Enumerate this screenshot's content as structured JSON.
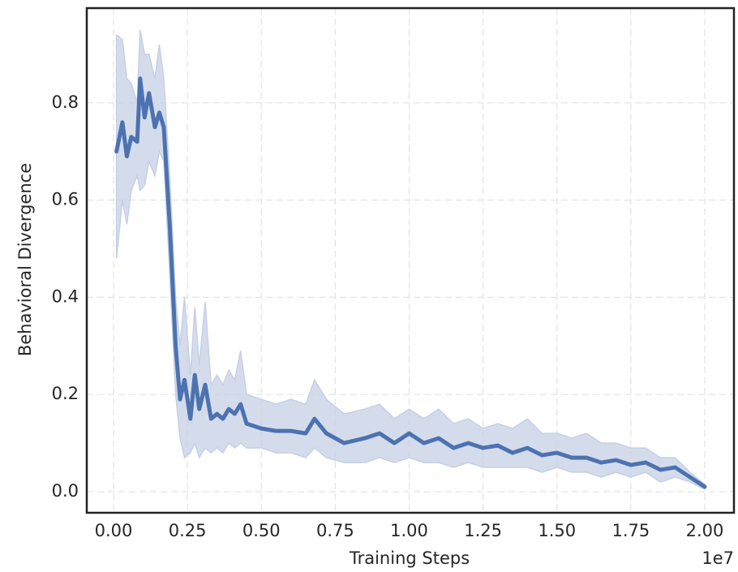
{
  "chart_data": {
    "type": "line",
    "xlabel": "Training Steps",
    "ylabel": "Behavioral Divergence",
    "x_offset_label": "1e7",
    "x": [
      0.01,
      0.03,
      0.045,
      0.06,
      0.08,
      0.09,
      0.105,
      0.12,
      0.14,
      0.155,
      0.17,
      0.19,
      0.21,
      0.225,
      0.24,
      0.26,
      0.275,
      0.29,
      0.31,
      0.33,
      0.35,
      0.37,
      0.39,
      0.41,
      0.43,
      0.45,
      0.5,
      0.55,
      0.6,
      0.65,
      0.68,
      0.72,
      0.78,
      0.85,
      0.9,
      0.95,
      1.0,
      1.05,
      1.1,
      1.15,
      1.2,
      1.25,
      1.3,
      1.35,
      1.4,
      1.45,
      1.5,
      1.55,
      1.6,
      1.65,
      1.7,
      1.75,
      1.8,
      1.85,
      1.9,
      1.95,
      2.0
    ],
    "values": [
      0.7,
      0.76,
      0.69,
      0.73,
      0.72,
      0.85,
      0.77,
      0.82,
      0.75,
      0.78,
      0.75,
      0.55,
      0.3,
      0.19,
      0.23,
      0.15,
      0.24,
      0.17,
      0.22,
      0.15,
      0.16,
      0.15,
      0.17,
      0.16,
      0.18,
      0.14,
      0.13,
      0.125,
      0.125,
      0.12,
      0.15,
      0.12,
      0.1,
      0.11,
      0.12,
      0.1,
      0.12,
      0.1,
      0.11,
      0.09,
      0.1,
      0.09,
      0.095,
      0.08,
      0.09,
      0.075,
      0.08,
      0.07,
      0.07,
      0.06,
      0.065,
      0.055,
      0.06,
      0.045,
      0.05,
      0.03,
      0.01
    ],
    "band": {
      "lower": [
        0.48,
        0.6,
        0.55,
        0.62,
        0.65,
        0.62,
        0.63,
        0.68,
        0.65,
        0.7,
        0.68,
        0.45,
        0.2,
        0.11,
        0.07,
        0.08,
        0.1,
        0.07,
        0.09,
        0.08,
        0.09,
        0.08,
        0.1,
        0.09,
        0.1,
        0.09,
        0.09,
        0.08,
        0.08,
        0.07,
        0.09,
        0.07,
        0.06,
        0.06,
        0.07,
        0.06,
        0.07,
        0.06,
        0.06,
        0.05,
        0.06,
        0.05,
        0.05,
        0.05,
        0.05,
        0.04,
        0.05,
        0.04,
        0.04,
        0.03,
        0.04,
        0.03,
        0.04,
        0.02,
        0.03,
        0.02,
        0.005
      ],
      "upper": [
        0.94,
        0.93,
        0.85,
        0.84,
        0.8,
        0.95,
        0.9,
        0.9,
        0.85,
        0.92,
        0.85,
        0.65,
        0.4,
        0.3,
        0.4,
        0.24,
        0.38,
        0.26,
        0.39,
        0.22,
        0.24,
        0.22,
        0.25,
        0.23,
        0.29,
        0.2,
        0.19,
        0.18,
        0.19,
        0.18,
        0.23,
        0.19,
        0.16,
        0.17,
        0.18,
        0.15,
        0.17,
        0.15,
        0.17,
        0.14,
        0.15,
        0.13,
        0.14,
        0.13,
        0.15,
        0.12,
        0.12,
        0.11,
        0.12,
        0.1,
        0.1,
        0.09,
        0.09,
        0.07,
        0.07,
        0.04,
        0.015
      ],
      "color": "#c5d0e6"
    },
    "color": "#4c72b0",
    "xlim": [
      -0.0905,
      2.0988
    ],
    "xticks": [
      {
        "value": 0,
        "label": "0.00"
      },
      {
        "value": 0.25,
        "label": "0.25"
      },
      {
        "value": 0.5,
        "label": "0.50"
      },
      {
        "value": 0.75,
        "label": "0.75"
      },
      {
        "value": 1,
        "label": "1.00"
      },
      {
        "value": 1.25,
        "label": "1.25"
      },
      {
        "value": 1.5,
        "label": "1.50"
      },
      {
        "value": 1.75,
        "label": "1.75"
      },
      {
        "value": 2,
        "label": "2.00"
      }
    ],
    "ylim": [
      -0.0434,
      0.995
    ],
    "yticks": [
      {
        "value": 0,
        "label": "0.0"
      },
      0.2,
      0.4,
      0.6,
      0.8
    ],
    "grid": true
  }
}
